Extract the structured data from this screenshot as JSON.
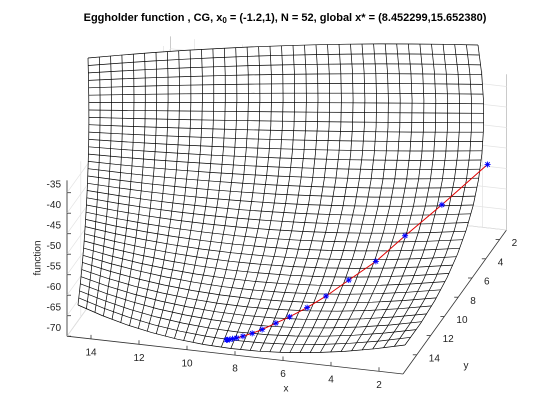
{
  "chart_data": {
    "type": "surface3d",
    "title": [
      "Eggholder function , CG, x",
      "0",
      " = (-1.2,1), N = 52, global x* = (8.452299,15.652380)"
    ],
    "x_label": "x",
    "y_label": "y",
    "z_label": "function",
    "xlim": [
      1,
      15
    ],
    "ylim": [
      1,
      16
    ],
    "zlim": [
      -70,
      -32
    ],
    "xticks": [
      2,
      4,
      6,
      8,
      10,
      12,
      14
    ],
    "yticks": [
      2,
      4,
      6,
      8,
      10,
      12,
      14
    ],
    "zticks": [
      -70,
      -65,
      -60,
      -55,
      -50,
      -45,
      -40,
      -35
    ],
    "grid": true,
    "path_color": "#e00000",
    "marker_color": "#0000ff",
    "iterates": {
      "x": [
        1.5,
        2.6,
        3.5,
        4.2,
        4.9,
        5.5,
        6.0,
        6.5,
        6.9,
        7.3,
        7.6,
        7.9,
        8.1,
        8.25,
        8.35,
        8.42,
        8.452299
      ],
      "y": [
        2.0,
        4.8,
        7.0,
        8.8,
        10.3,
        11.5,
        12.5,
        13.3,
        13.9,
        14.5,
        14.9,
        15.2,
        15.4,
        15.5,
        15.6,
        15.63,
        15.65238
      ],
      "z": [
        -52,
        -56,
        -59,
        -61.5,
        -63,
        -64.5,
        -65.3,
        -66,
        -66.4,
        -66.8,
        -67,
        -67.2,
        -67.3,
        -67.35,
        -67.4,
        -67.4,
        -67.4
      ]
    }
  }
}
